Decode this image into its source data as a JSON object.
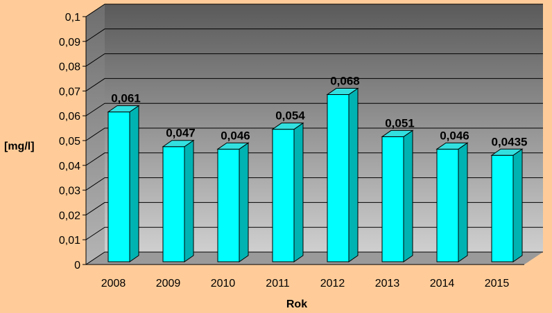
{
  "chart_data": {
    "type": "bar",
    "categories": [
      "2008",
      "2009",
      "2010",
      "2011",
      "2012",
      "2013",
      "2014",
      "2015"
    ],
    "values": [
      0.061,
      0.047,
      0.046,
      0.054,
      0.068,
      0.051,
      0.046,
      0.0435
    ],
    "data_labels": [
      "0,061",
      "0,047",
      "0,046",
      "0,054",
      "0,068",
      "0,051",
      "0,046",
      "0,0435"
    ],
    "ylim": [
      0,
      0.1
    ],
    "y_ticks": [
      "0",
      "0,01",
      "0,02",
      "0,03",
      "0,04",
      "0,05",
      "0,06",
      "0,07",
      "0,08",
      "0,09",
      "0,1"
    ],
    "xlabel": "Rok",
    "ylabel": "[mg/l]",
    "grid": true,
    "style": "3d-column",
    "colors": {
      "background": "#ffcc99",
      "bar_front": "#00ffff",
      "bar_side": "#00b3b3",
      "bar_top": "#33e0e0",
      "wall_top": "#5a5a5a",
      "wall_bottom": "#c8c8c8",
      "floor": "#9a9a9a"
    }
  }
}
